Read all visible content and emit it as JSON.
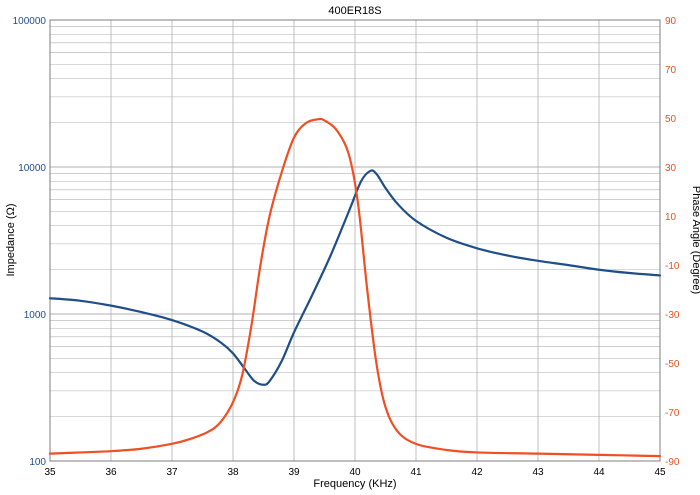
{
  "chart_data": {
    "type": "line",
    "title": "400ER18S",
    "xlabel": "Frequency (KHz)",
    "ylabel_left": "Impedance (Ω)",
    "ylabel_right": "Phase Angle (Degree)",
    "x_ticks": [
      "35",
      "36",
      "37",
      "38",
      "39",
      "40",
      "41",
      "42",
      "43",
      "44",
      "45"
    ],
    "left_ticks": [
      "100",
      "1000",
      "10000",
      "100000"
    ],
    "right_ticks": [
      "-90",
      "-70",
      "-50",
      "-30",
      "-10",
      "10",
      "30",
      "50",
      "70",
      "90"
    ],
    "xlim": [
      35,
      45
    ],
    "ylim_left": [
      100,
      100000
    ],
    "left_scale": "log",
    "ylim_right": [
      -90,
      90
    ],
    "grid": true,
    "colors": {
      "impedance": "#1f4e88",
      "phase": "#f04e23",
      "left_axis_text": "#1f4e88",
      "right_axis_text": "#e0531f",
      "grid": "#b0b0b0"
    },
    "series": [
      {
        "key": "impedance",
        "axis": "left",
        "x": [
          35,
          35.5,
          36,
          36.5,
          37,
          37.5,
          37.8,
          38,
          38.2,
          38.35,
          38.5,
          38.6,
          38.8,
          39,
          39.3,
          39.6,
          39.9,
          40.1,
          40.25,
          40.35,
          40.5,
          40.7,
          41,
          41.5,
          42,
          42.5,
          43,
          43.5,
          44,
          44.5,
          45
        ],
        "y": [
          1280,
          1230,
          1140,
          1030,
          910,
          760,
          640,
          540,
          420,
          350,
          330,
          350,
          480,
          750,
          1350,
          2500,
          5000,
          8000,
          9400,
          9000,
          7200,
          5600,
          4300,
          3300,
          2800,
          2500,
          2300,
          2150,
          2000,
          1900,
          1830
        ]
      },
      {
        "key": "phase",
        "axis": "right",
        "x": [
          35,
          35.5,
          36,
          36.5,
          37,
          37.3,
          37.6,
          37.8,
          38,
          38.15,
          38.3,
          38.45,
          38.6,
          38.8,
          39,
          39.2,
          39.4,
          39.5,
          39.7,
          39.9,
          40.05,
          40.2,
          40.35,
          40.5,
          40.7,
          41,
          41.5,
          42,
          43,
          44,
          45
        ],
        "y": [
          -87,
          -86.5,
          -86,
          -85,
          -83,
          -81,
          -78,
          -74,
          -66,
          -55,
          -35,
          -10,
          10,
          28,
          42,
          48,
          49.5,
          49,
          45,
          35,
          15,
          -20,
          -50,
          -68,
          -78,
          -83,
          -85.5,
          -86.5,
          -87,
          -87.5,
          -88
        ]
      }
    ]
  }
}
